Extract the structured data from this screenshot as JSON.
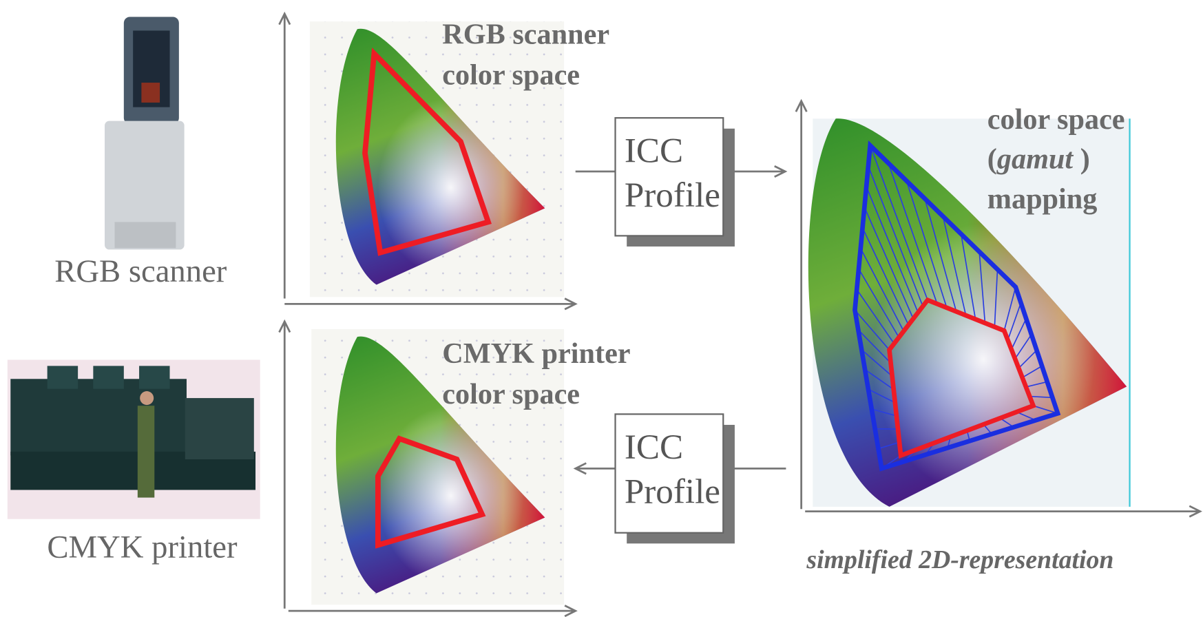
{
  "devices": [
    {
      "label": "RGB scanner"
    },
    {
      "label": "CMYK printer"
    }
  ],
  "panels": [
    {
      "title_lines": [
        "RGB scanner",
        "color space"
      ]
    },
    {
      "title_lines": [
        "CMYK printer",
        "color space"
      ]
    }
  ],
  "profiles": [
    {
      "lines": [
        "ICC",
        "Profile"
      ]
    },
    {
      "lines": [
        "ICC",
        "Profile"
      ]
    }
  ],
  "mapping": {
    "line1": "color space",
    "open": "(",
    "term": "gamut",
    "close": " )",
    "line3": "mapping"
  },
  "caption": "simplified 2D-representation"
}
